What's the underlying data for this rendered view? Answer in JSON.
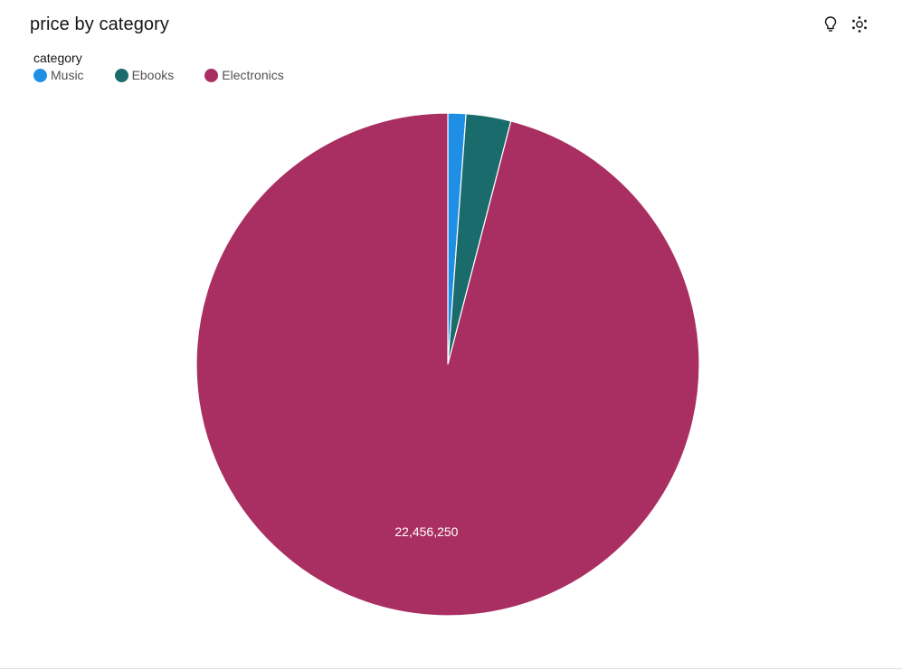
{
  "title": "price by category",
  "toolbar": {
    "insights_icon": "lightbulb-icon",
    "explore_icon": "dots-cluster-icon"
  },
  "legend": {
    "title": "category",
    "items": [
      {
        "label": "Music",
        "color": "#1f8fe5"
      },
      {
        "label": "Ebooks",
        "color": "#1a6b6b"
      },
      {
        "label": "Electronics",
        "color": "#a92f63"
      }
    ]
  },
  "chart_data": {
    "type": "pie",
    "title": "price by category",
    "legend_title": "category",
    "legend_position": "top-left",
    "categories": [
      "Music",
      "Ebooks",
      "Electronics"
    ],
    "values": [
      270000,
      675000,
      22456250
    ],
    "colors": [
      "#1f8fe5",
      "#1a6b6b",
      "#a92f63"
    ],
    "data_labels": [
      "",
      "",
      "22,456,250"
    ]
  }
}
